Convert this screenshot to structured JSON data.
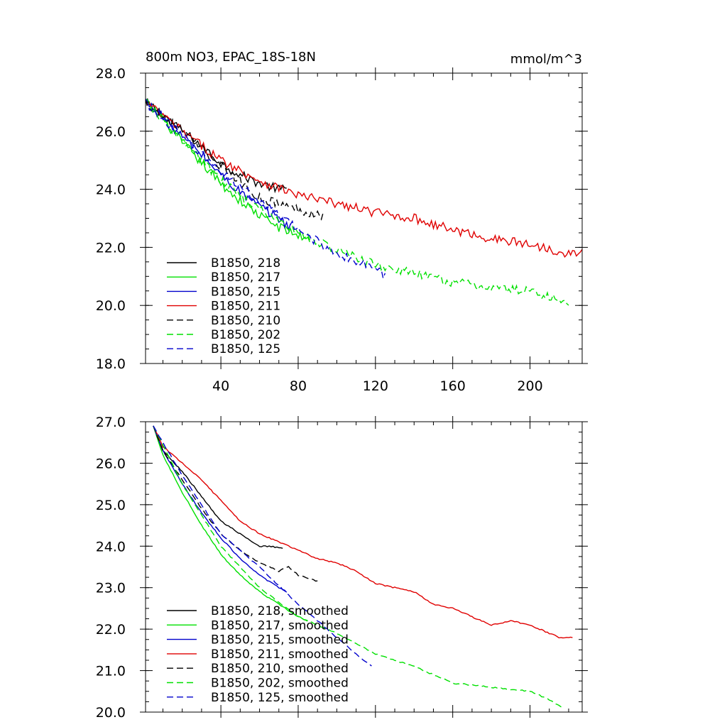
{
  "chart_data": [
    {
      "type": "line",
      "title": "800m NO3, EPAC_18S-18N",
      "units_label": "mmol/m^3",
      "xlabel": "",
      "ylabel": "",
      "xlim": [
        1,
        227
      ],
      "ylim": [
        18.0,
        28.0
      ],
      "x_ticks": [
        40,
        80,
        120,
        160,
        200
      ],
      "x_tick_labels": [
        "40",
        "80",
        "120",
        "160",
        "200"
      ],
      "y_ticks": [
        18.0,
        20.0,
        22.0,
        24.0,
        26.0,
        28.0
      ],
      "y_tick_labels": [
        "18.0",
        "20.0",
        "22.0",
        "24.0",
        "26.0",
        "28.0"
      ],
      "grid": false,
      "legend_position": "bottom-left",
      "noisy": true,
      "series": [
        {
          "name": "B1850, 218",
          "color": "#000000",
          "dash": "solid",
          "x": [
            1,
            10,
            20,
            30,
            40,
            50,
            60,
            70,
            74
          ],
          "values": [
            27.0,
            26.6,
            26.0,
            25.5,
            24.9,
            24.5,
            24.2,
            24.0,
            24.0
          ]
        },
        {
          "name": "B1850, 217",
          "color": "#00e000",
          "dash": "solid",
          "x": [
            1,
            10,
            20,
            30,
            40,
            50,
            60,
            70,
            80,
            86
          ],
          "values": [
            27.0,
            26.4,
            25.6,
            24.9,
            24.2,
            23.6,
            23.1,
            22.7,
            22.4,
            22.3
          ]
        },
        {
          "name": "B1850, 215",
          "color": "#0000cc",
          "dash": "solid",
          "x": [
            1,
            10,
            20,
            30,
            40,
            50,
            60,
            70,
            76
          ],
          "values": [
            27.0,
            26.5,
            25.8,
            25.2,
            24.5,
            23.9,
            23.4,
            23.0,
            22.7
          ]
        },
        {
          "name": "B1850, 211",
          "color": "#e00000",
          "dash": "solid",
          "x": [
            1,
            20,
            40,
            60,
            80,
            100,
            120,
            140,
            160,
            180,
            200,
            220,
            227
          ],
          "values": [
            27.0,
            26.0,
            25.0,
            24.3,
            23.8,
            23.5,
            23.2,
            23.0,
            22.6,
            22.3,
            22.1,
            21.8,
            21.8
          ]
        },
        {
          "name": "B1850, 210",
          "color": "#000000",
          "dash": "dashed",
          "x": [
            1,
            20,
            40,
            60,
            70,
            80,
            93
          ],
          "values": [
            27.0,
            26.0,
            24.8,
            23.7,
            23.5,
            23.3,
            23.1
          ]
        },
        {
          "name": "B1850, 202",
          "color": "#00e000",
          "dash": "dashed",
          "x": [
            1,
            40,
            60,
            80,
            100,
            120,
            140,
            160,
            180,
            200,
            210,
            220
          ],
          "values": [
            27.0,
            24.3,
            23.3,
            22.5,
            21.9,
            21.4,
            21.1,
            20.8,
            20.6,
            20.5,
            20.3,
            20.0
          ]
        },
        {
          "name": "B1850, 125",
          "color": "#0000cc",
          "dash": "dashed",
          "x": [
            1,
            40,
            60,
            80,
            100,
            110,
            120,
            125
          ],
          "values": [
            27.0,
            24.6,
            23.6,
            22.6,
            21.8,
            21.5,
            21.3,
            21.0
          ]
        }
      ]
    },
    {
      "type": "line",
      "title": "",
      "units_label": "",
      "xlabel": "",
      "ylabel": "",
      "xlim": [
        1,
        227
      ],
      "ylim": [
        20.0,
        27.0
      ],
      "x_ticks": [
        40,
        80,
        120,
        160,
        200
      ],
      "x_tick_labels": [],
      "y_ticks": [
        20.0,
        21.0,
        22.0,
        23.0,
        24.0,
        25.0,
        26.0,
        27.0
      ],
      "y_tick_labels": [
        "20.0",
        "21.0",
        "22.0",
        "23.0",
        "24.0",
        "25.0",
        "26.0",
        "27.0"
      ],
      "grid": false,
      "legend_position": "bottom-left",
      "noisy": false,
      "series": [
        {
          "name": "B1850, 218, smoothed",
          "color": "#000000",
          "dash": "solid",
          "x": [
            5,
            10,
            20,
            30,
            40,
            50,
            60,
            65,
            72
          ],
          "values": [
            26.9,
            26.3,
            25.8,
            25.2,
            24.6,
            24.3,
            24.0,
            24.0,
            23.95
          ]
        },
        {
          "name": "B1850, 217, smoothed",
          "color": "#00e000",
          "dash": "solid",
          "x": [
            5,
            10,
            20,
            30,
            40,
            50,
            60,
            70,
            80,
            85
          ],
          "values": [
            26.9,
            26.2,
            25.3,
            24.5,
            23.8,
            23.3,
            22.9,
            22.6,
            22.3,
            22.2
          ]
        },
        {
          "name": "B1850, 215, smoothed",
          "color": "#0000cc",
          "dash": "solid",
          "x": [
            5,
            10,
            20,
            30,
            40,
            50,
            60,
            70,
            74
          ],
          "values": [
            26.9,
            26.3,
            25.5,
            24.8,
            24.2,
            23.7,
            23.3,
            23.0,
            22.9
          ]
        },
        {
          "name": "B1850, 211, smoothed",
          "color": "#e00000",
          "dash": "solid",
          "x": [
            5,
            10,
            20,
            30,
            40,
            50,
            60,
            70,
            80,
            90,
            100,
            110,
            120,
            130,
            140,
            150,
            160,
            170,
            180,
            190,
            200,
            210,
            215,
            222
          ],
          "values": [
            26.9,
            26.4,
            26.0,
            25.6,
            25.1,
            24.6,
            24.3,
            24.1,
            23.9,
            23.7,
            23.6,
            23.4,
            23.1,
            23.0,
            22.9,
            22.6,
            22.5,
            22.3,
            22.1,
            22.2,
            22.1,
            21.9,
            21.8,
            21.8
          ]
        },
        {
          "name": "B1850, 210, smoothed",
          "color": "#000000",
          "dash": "dashed",
          "x": [
            5,
            10,
            20,
            30,
            40,
            50,
            60,
            70,
            75,
            80,
            90
          ],
          "values": [
            26.9,
            26.3,
            25.6,
            24.9,
            24.3,
            23.9,
            23.6,
            23.4,
            23.5,
            23.3,
            23.15
          ]
        },
        {
          "name": "B1850, 202, smoothed",
          "color": "#00e000",
          "dash": "dashed",
          "x": [
            5,
            20,
            40,
            60,
            80,
            100,
            120,
            140,
            160,
            180,
            200,
            210,
            217
          ],
          "values": [
            26.9,
            25.5,
            24.0,
            23.0,
            22.3,
            21.9,
            21.4,
            21.1,
            20.7,
            20.6,
            20.5,
            20.3,
            20.1
          ]
        },
        {
          "name": "B1850, 125, smoothed",
          "color": "#0000cc",
          "dash": "dashed",
          "x": [
            5,
            20,
            40,
            60,
            80,
            100,
            110,
            118
          ],
          "values": [
            26.9,
            25.7,
            24.3,
            23.5,
            22.6,
            21.8,
            21.4,
            21.1
          ]
        }
      ]
    }
  ]
}
